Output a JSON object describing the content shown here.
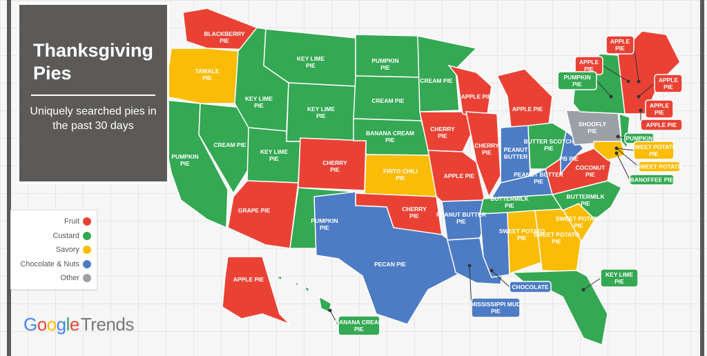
{
  "title": "Thanksgiving Pies",
  "subtitle": "Uniquely searched pies in the past 30 days",
  "colors": {
    "Fruit": "#e94235",
    "Custard": "#34a853",
    "Savory": "#fbbc05",
    "Chocolate & Nuts": "#4d7cc4",
    "Other": "#9aa0a6"
  },
  "legend": [
    {
      "label": "Fruit",
      "color": "#e94235"
    },
    {
      "label": "Custard",
      "color": "#34a853"
    },
    {
      "label": "Savory",
      "color": "#fbbc05"
    },
    {
      "label": "Chocolate & Nuts",
      "color": "#4d7cc4"
    },
    {
      "label": "Other",
      "color": "#9aa0a6"
    }
  ],
  "logo": {
    "google": "Google",
    "trends": "Trends"
  },
  "states": [
    {
      "label": "BLACKBERRY PIE",
      "category": "Fruit"
    },
    {
      "label": "TAMALE PIE",
      "category": "Savory"
    },
    {
      "label": "PUMPKIN PIE",
      "category": "Custard"
    },
    {
      "label": "CREAM PIE",
      "category": "Custard"
    },
    {
      "label": "KEY LIME PIE",
      "category": "Custard"
    },
    {
      "label": "KEY LIME PIE",
      "category": "Custard"
    },
    {
      "label": "KEY LIME PIE",
      "category": "Custard"
    },
    {
      "label": "KEY LIME PIE",
      "category": "Custard"
    },
    {
      "label": "GRAPE PIE",
      "category": "Fruit"
    },
    {
      "label": "CHERRY PIE",
      "category": "Fruit"
    },
    {
      "label": "PUMPKIN PIE",
      "category": "Custard"
    },
    {
      "label": "PUMPKIN PIE",
      "category": "Custard"
    },
    {
      "label": "CREAM PIE",
      "category": "Custard"
    },
    {
      "label": "BANANA CREAM PIE",
      "category": "Custard"
    },
    {
      "label": "FRITO CHILI PIE",
      "category": "Savory"
    },
    {
      "label": "CHERRY PIE",
      "category": "Fruit"
    },
    {
      "label": "PECAN PIE",
      "category": "Chocolate & Nuts"
    },
    {
      "label": "CREAM PIE",
      "category": "Custard"
    },
    {
      "label": "CHERRY PIE",
      "category": "Fruit"
    },
    {
      "label": "APPLE PIE",
      "category": "Fruit"
    },
    {
      "label": "PEANUT BUTTER PIE",
      "category": "Chocolate & Nuts"
    },
    {
      "label": "",
      "category": "Chocolate & Nuts"
    },
    {
      "label": "APPLE PIE",
      "category": "Fruit"
    },
    {
      "label": "CHERRY PIE",
      "category": "Fruit"
    },
    {
      "label": "APPLE PIE",
      "category": "Fruit"
    },
    {
      "label": "PEANUT BUTTER",
      "category": "Chocolate & Nuts"
    },
    {
      "label": "BUTTER SCOTCH PIE",
      "category": "Custard"
    },
    {
      "label": "PEANUT BUTTER PIE",
      "category": "Chocolate & Nuts"
    },
    {
      "label": "BUTTERMILK PIE",
      "category": "Custard"
    },
    {
      "label": "",
      "category": "Chocolate & Nuts"
    },
    {
      "label": "SWEET POTATO PIE",
      "category": "Savory"
    },
    {
      "label": "SWEET POTATO PIE",
      "category": "Savory"
    },
    {
      "label": "",
      "category": "Custard"
    },
    {
      "label": "SWEET POTATO PIE",
      "category": "Savory"
    },
    {
      "label": "BUTTERMILK PIE",
      "category": "Custard"
    },
    {
      "label": "COCONUT PIE",
      "category": "Fruit"
    },
    {
      "label": "PB PIE",
      "category": "Chocolate & Nuts"
    },
    {
      "label": "SHOOFLY PIE",
      "category": "Other"
    },
    {
      "label": "",
      "category": "Custard"
    },
    {
      "label": "",
      "category": "Fruit"
    },
    {
      "label": "",
      "category": "Savory"
    },
    {
      "label": "",
      "category": "Custard"
    },
    {
      "label": "APPLE PIE",
      "category": "Fruit"
    },
    {
      "label": "",
      "category": "Custard"
    }
  ],
  "callouts": [
    {
      "label": "APPLE PIE",
      "category": "Fruit"
    },
    {
      "label": "APPLE PIE",
      "category": "Fruit"
    },
    {
      "label": "PUMPKIN PIE",
      "category": "Custard"
    },
    {
      "label": "APPLE PIE",
      "category": "Fruit"
    },
    {
      "label": "APPLE PIE",
      "category": "Fruit"
    },
    {
      "label": "APPLE PIE",
      "category": "Fruit"
    },
    {
      "label": "PUMPKIN",
      "category": "Custard"
    },
    {
      "label": "SWEET POTATO PIE",
      "category": "Savory"
    },
    {
      "label": "SWEET POTATO",
      "category": "Savory"
    },
    {
      "label": "BANOFFEE PIE",
      "category": "Custard"
    },
    {
      "label": "KEY LIME PIE",
      "category": "Custard"
    },
    {
      "label": "CHOCOLATE",
      "category": "Chocolate & Nuts"
    },
    {
      "label": "MISSISSIPPI MUD PIE",
      "category": "Chocolate & Nuts"
    },
    {
      "label": "BANANA CREAM PIE",
      "category": "Custard"
    }
  ]
}
